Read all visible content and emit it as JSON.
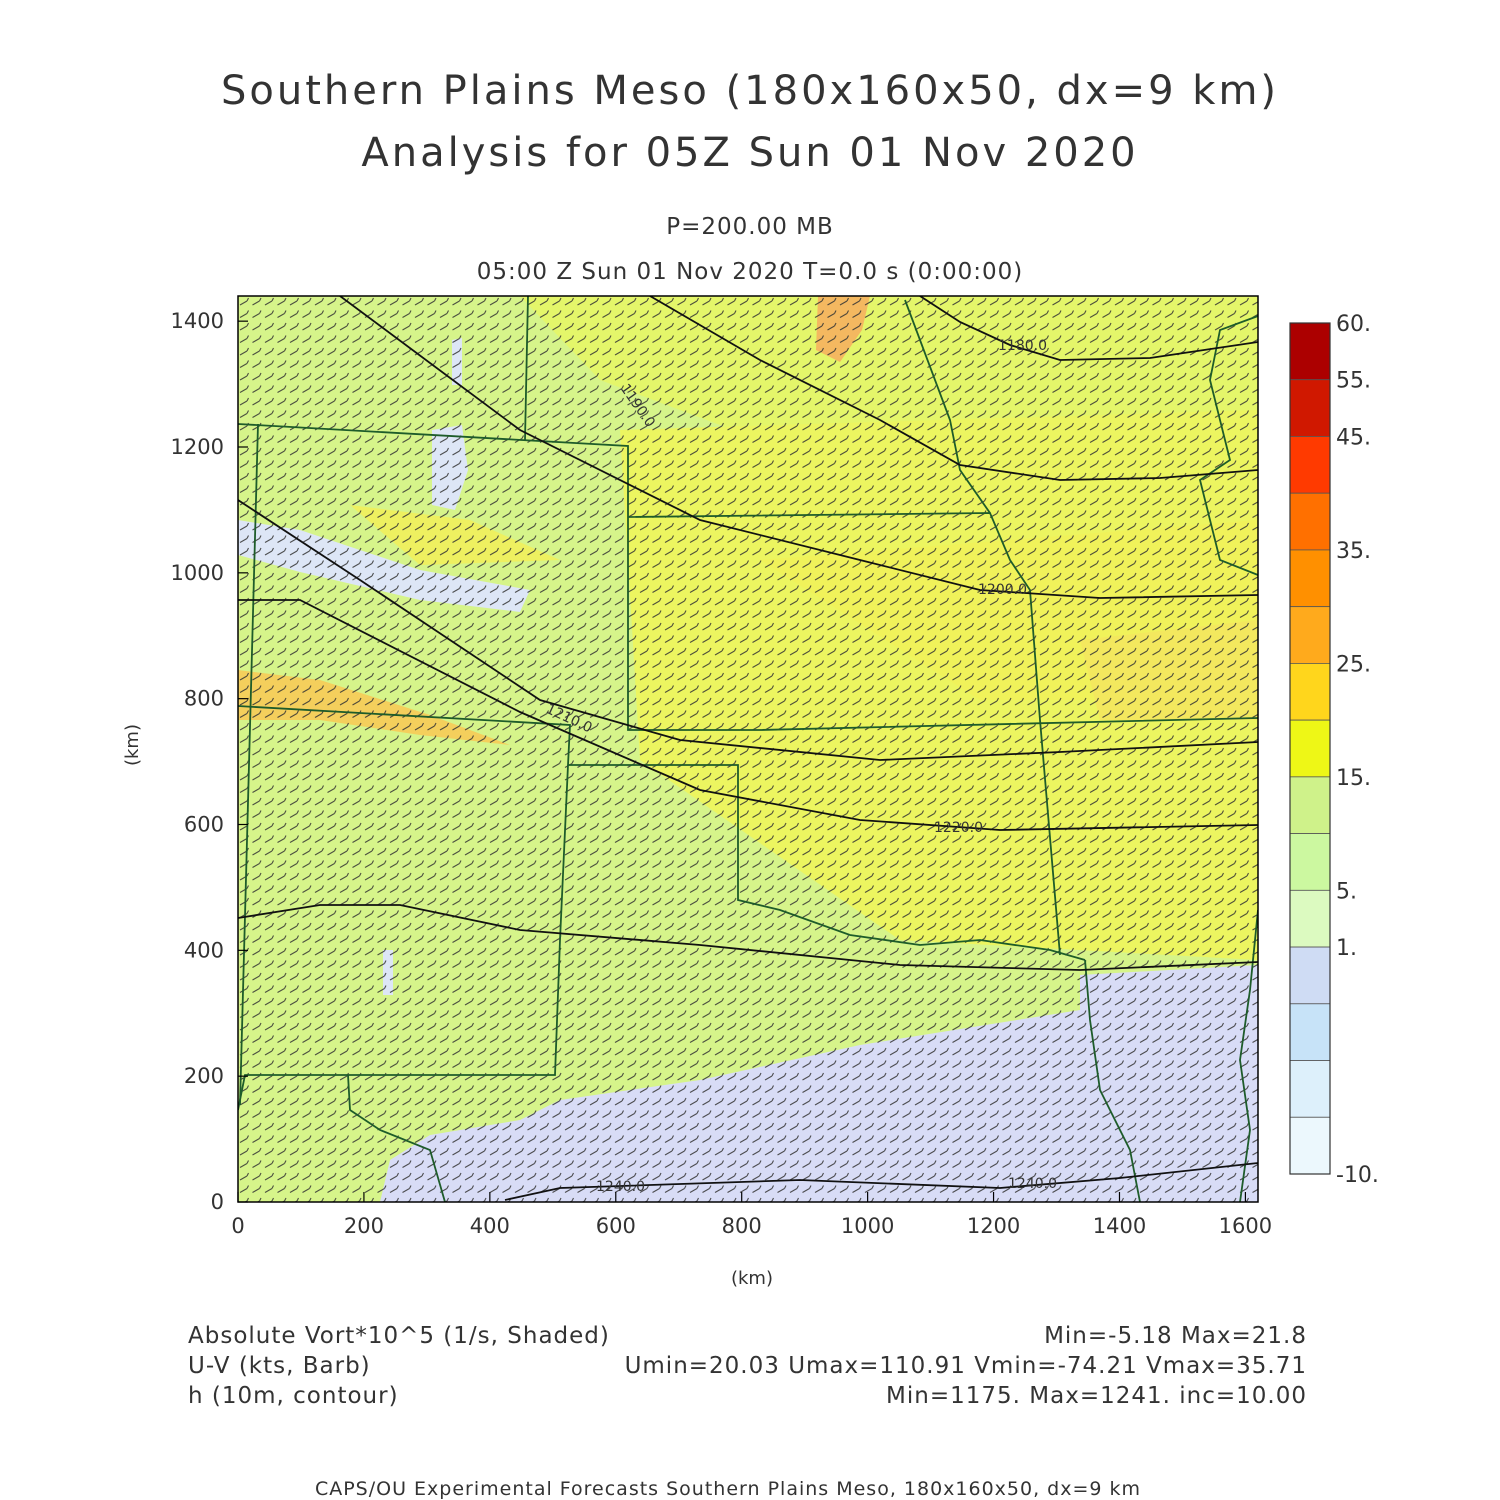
{
  "header": {
    "title_line1": "Southern Plains Meso (180x160x50, dx=9 km)",
    "title_line2": "Analysis for 05Z Sun 01 Nov 2020",
    "level": "P=200.00 MB",
    "valid_time": "05:00 Z Sun 01 Nov 2020    T=0.0 s (0:00:00)"
  },
  "axes": {
    "x_ticks": [
      "0",
      "200",
      "400",
      "600",
      "800",
      "1000",
      "1200",
      "1400",
      "1600"
    ],
    "y_ticks": [
      "0",
      "200",
      "400",
      "600",
      "800",
      "1000",
      "1200",
      "1400"
    ],
    "x_label": "(km)",
    "y_label": "(km)",
    "x_range": [
      0,
      1620
    ],
    "y_range": [
      0,
      1440
    ]
  },
  "colorbar": {
    "labels": [
      "60.",
      "55.",
      "45.",
      "35.",
      "25.",
      "15.",
      "5.",
      "1.",
      "-10."
    ],
    "colors": [
      "#ac0000",
      "#d01800",
      "#ff3a00",
      "#ff7000",
      "#ff9000",
      "#ffaa1c",
      "#ffd61c",
      "#eef716",
      "#cff28a",
      "#ccf8a0",
      "#dcfac0",
      "#cfdcf4",
      "#c7e3f8",
      "#ddf0fb",
      "#ecf8fd"
    ]
  },
  "contours": [
    {
      "label": "1180.0"
    },
    {
      "label": "1190.0"
    },
    {
      "label": "1200.0"
    },
    {
      "label": "1210.0"
    },
    {
      "label": "1220.0"
    },
    {
      "label": "1240.0"
    },
    {
      "label": "1240.0"
    }
  ],
  "footer": {
    "left1": "Absolute Vort*10^5 (1/s, Shaded)",
    "left2": "U-V (kts, Barb)",
    "left3": "h (10m, contour)",
    "right1": "Min=-5.18 Max=21.8",
    "right2": "Umin=20.03 Umax=110.91 Vmin=-74.21 Vmax=35.71",
    "right3": "Min=1175. Max=1241. inc=10.00",
    "credit": "CAPS/OU Experimental Forecasts  Southern Plains Meso, 180x160x50, dx=9 km"
  }
}
